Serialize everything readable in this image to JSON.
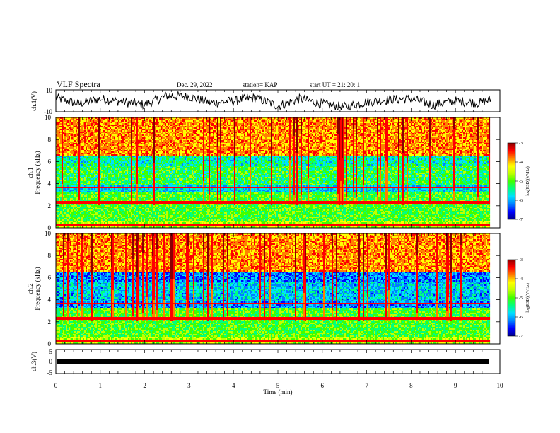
{
  "header": {
    "title": "VLF Spectra",
    "date": "Dec. 29, 2022",
    "station": "station= KAP",
    "start": "start  UT  =   21: 20: 1"
  },
  "colorbar": {
    "label": "log(PSD)(V²/Hz)",
    "ticks": [
      "-3",
      "-4",
      "-5",
      "-6",
      "-7"
    ]
  },
  "colors": {
    "spectrogram_palette": [
      "#00008b",
      "#0000ff",
      "#0080ff",
      "#00e0ff",
      "#00ff80",
      "#40ff00",
      "#c0ff00",
      "#ffff00",
      "#ff8000",
      "#ff0000",
      "#8b0000"
    ]
  },
  "chart_data": [
    {
      "type": "line",
      "panel": "ch1-waveform",
      "ylabel": "ch.1(V)",
      "ylim": [
        -10,
        10
      ],
      "y_ticks": [
        "10",
        "-10"
      ],
      "xlim": [
        0,
        10
      ],
      "x": [
        0.0,
        0.5,
        1.0,
        1.5,
        2.0,
        2.5,
        3.0,
        3.5,
        4.0,
        4.5,
        5.0,
        5.5,
        6.0,
        6.5,
        7.0,
        7.5,
        8.0,
        8.5,
        9.0,
        9.5,
        9.8
      ],
      "y": [
        3,
        -3,
        2,
        -1,
        -4,
        5,
        4,
        -2,
        0,
        3,
        -5,
        2,
        -3,
        -6,
        -1,
        1,
        2,
        -4,
        0,
        -2,
        1
      ]
    },
    {
      "type": "heatmap",
      "panel": "ch1-spectrogram",
      "ylabel": "ch.1\nFrequency (kHz)",
      "ylim": [
        0,
        10
      ],
      "y_ticks": [
        "0",
        "2",
        "4",
        "6",
        "8",
        "10"
      ],
      "xlim": [
        0,
        10
      ],
      "zlim": [
        -7,
        -3
      ],
      "data_end_min": 9.8,
      "colorbar": "log(PSD)(V²/Hz)"
    },
    {
      "type": "heatmap",
      "panel": "ch2-spectrogram",
      "ylabel": "ch.2\nFrequency (kHz)",
      "ylim": [
        0,
        10
      ],
      "y_ticks": [
        "0",
        "2",
        "4",
        "6",
        "8",
        "10"
      ],
      "xlim": [
        0,
        10
      ],
      "zlim": [
        -7,
        -3
      ],
      "data_end_min": 9.8,
      "colorbar": "log(PSD)(V²/Hz)"
    },
    {
      "type": "line",
      "panel": "ch3-waveform",
      "ylabel": "ch.3(V)",
      "ylim": [
        -5,
        5
      ],
      "y_ticks": [
        "5",
        "0",
        "-5"
      ],
      "xlim": [
        0,
        10
      ],
      "x": [
        0,
        9.8
      ],
      "y": [
        0,
        0
      ],
      "xlabel": "Time  (min)",
      "x_ticks": [
        "0",
        "1",
        "2",
        "3",
        "4",
        "5",
        "6",
        "7",
        "8",
        "9",
        "10"
      ]
    }
  ]
}
